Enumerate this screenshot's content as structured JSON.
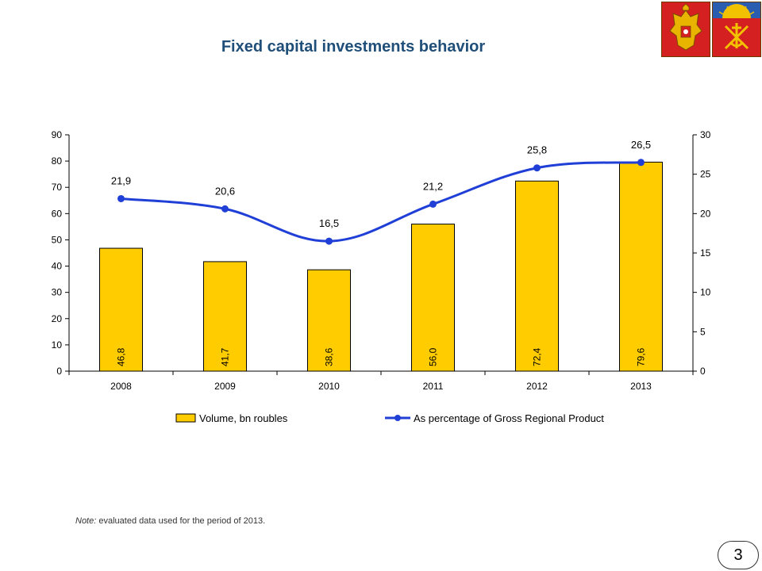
{
  "title": "Fixed capital investments behavior",
  "emblems": [
    {
      "name": "russian-coat-of-arms",
      "color": "#d42020"
    },
    {
      "name": "murmansk-region-coat-of-arms",
      "color": "#d42020"
    }
  ],
  "chart_data": {
    "type": "bar-line-combo",
    "title": "",
    "categories": [
      "2008",
      "2009",
      "2010",
      "2011",
      "2012",
      "2013"
    ],
    "series": [
      {
        "name": "Volume, bn roubles",
        "type": "bar",
        "axis": "left",
        "color": "#ffcc00",
        "values": [
          46.8,
          41.7,
          38.6,
          56.0,
          72.4,
          79.6
        ],
        "labels": [
          "46,8",
          "41,7",
          "38,6",
          "56,0",
          "72,4",
          "79,6"
        ]
      },
      {
        "name": "As percentage of Gross Regional Product",
        "type": "line",
        "axis": "right",
        "color": "#1f3fd6",
        "values": [
          21.9,
          20.6,
          16.5,
          21.2,
          25.8,
          26.5
        ],
        "labels": [
          "21,9",
          "20,6",
          "16,5",
          "21,2",
          "25,8",
          "26,5"
        ]
      }
    ],
    "y_left": {
      "min": 0,
      "max": 90,
      "ticks": [
        "0",
        "10",
        "20",
        "30",
        "40",
        "50",
        "60",
        "70",
        "80",
        "90"
      ]
    },
    "y_right": {
      "min": 0,
      "max": 30,
      "ticks": [
        "0",
        "5",
        "10",
        "15",
        "20",
        "25",
        "30"
      ]
    },
    "grid": false,
    "legend_position": "bottom"
  },
  "note": {
    "label": "Note:",
    "text": " evaluated data used for the period of 2013."
  },
  "page_number": "3"
}
